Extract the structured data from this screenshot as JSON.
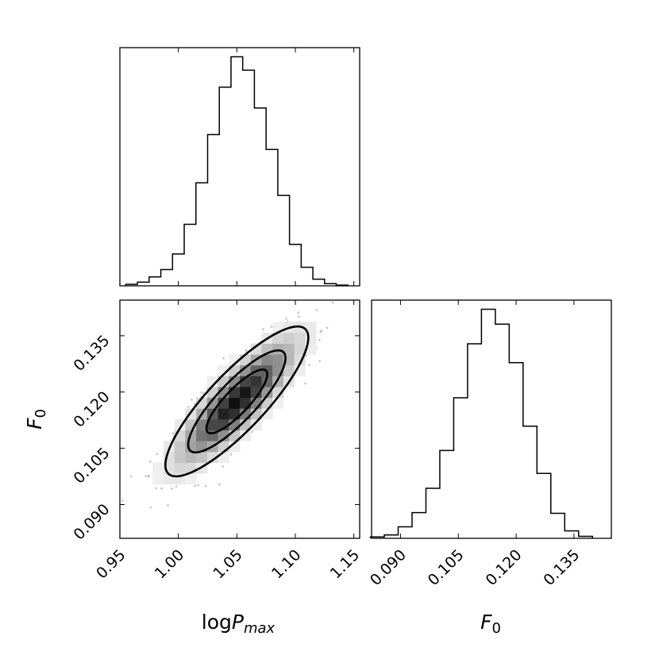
{
  "chart_data": [
    {
      "type": "histogram",
      "panel": "marginal-logPmax",
      "x": [
        0.96,
        0.97,
        0.98,
        0.99,
        1.0,
        1.01,
        1.02,
        1.03,
        1.04,
        1.05,
        1.06,
        1.07,
        1.08,
        1.09,
        1.1,
        1.11,
        1.12,
        1.13,
        1.14
      ],
      "values": [
        2,
        5,
        12,
        22,
        43,
        83,
        139,
        204,
        268,
        309,
        291,
        240,
        184,
        122,
        56,
        25,
        9,
        3,
        1
      ],
      "xlim": [
        0.95,
        1.155
      ]
    },
    {
      "type": "scatter",
      "panel": "joint-logPmax-F0",
      "points_and_density": "2D histogram with 3 contour levels",
      "mean": [
        1.05,
        0.1175
      ],
      "std": [
        0.026,
        0.0085
      ],
      "correlation": 0.85,
      "xlim": [
        0.95,
        1.155
      ],
      "ylim": [
        0.081,
        0.1445
      ],
      "xticks": [
        "0.95",
        "1.00",
        "1.05",
        "1.10",
        "1.15"
      ],
      "yticks": [
        "0.090",
        "0.105",
        "0.120",
        "0.135"
      ]
    },
    {
      "type": "histogram",
      "panel": "marginal-F0",
      "x": [
        0.084,
        0.0876,
        0.0912,
        0.0948,
        0.0984,
        0.102,
        0.1056,
        0.1092,
        0.1128,
        0.1164,
        0.12,
        0.1236,
        0.1272,
        0.1308,
        0.1344,
        0.138
      ],
      "values": [
        2,
        5,
        17,
        38,
        74,
        130,
        208,
        288,
        339,
        317,
        260,
        166,
        96,
        37,
        11,
        3
      ],
      "xlim": [
        0.0825,
        0.1447
      ],
      "xticks": [
        "0.090",
        "0.105",
        "0.120",
        "0.135"
      ]
    }
  ],
  "labels": {
    "x_logp": "log",
    "x_logp_sym": "P",
    "x_logp_sub": "max",
    "f0_sym": "F",
    "f0_sub": "0"
  },
  "ticks": {
    "x_logp": [
      "0.95",
      "1.00",
      "1.05",
      "1.10",
      "1.15"
    ],
    "y_f0": [
      "0.090",
      "0.105",
      "0.120",
      "0.135"
    ],
    "x_f0": [
      "0.090",
      "0.105",
      "0.120",
      "0.135"
    ]
  }
}
